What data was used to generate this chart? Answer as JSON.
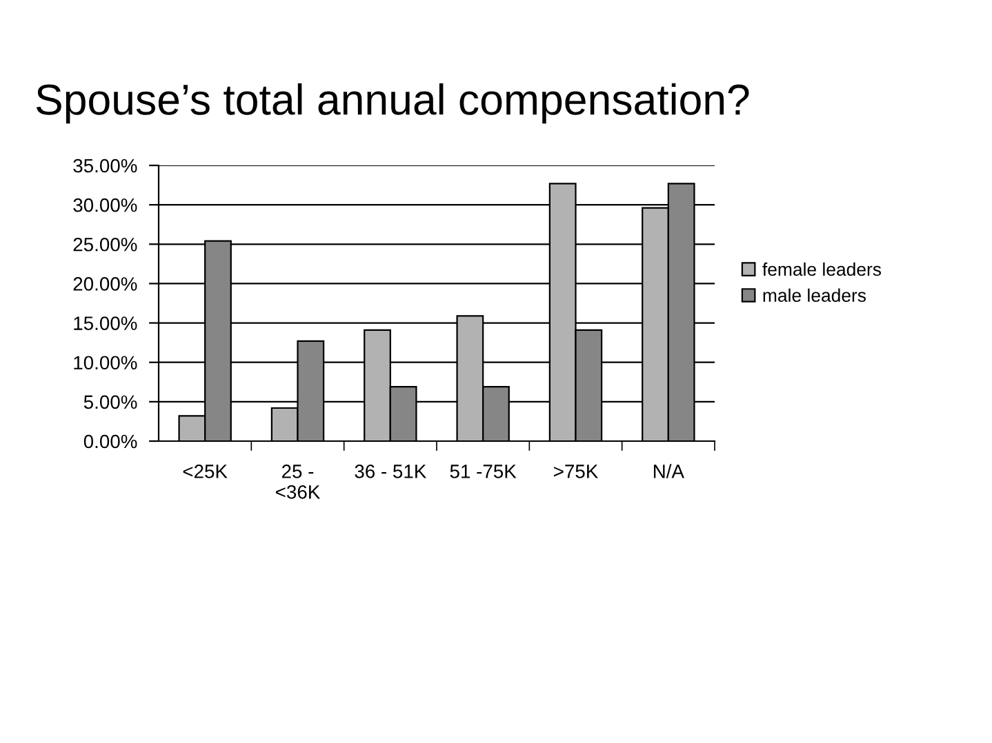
{
  "chart_data": {
    "type": "bar",
    "title": "Spouse’s total annual compensation?",
    "categories": [
      "<25K",
      "25 -\n<36K",
      "36 - 51K",
      "51 -75K",
      ">75K",
      "N/A"
    ],
    "series": [
      {
        "name": "female leaders",
        "color": "#b2b2b2",
        "values": [
          3.2,
          4.2,
          14.1,
          15.9,
          32.7,
          29.6
        ]
      },
      {
        "name": "male leaders",
        "color": "#868686",
        "values": [
          25.4,
          12.7,
          6.9,
          6.9,
          14.1,
          32.7
        ]
      }
    ],
    "ylim": [
      0,
      35
    ],
    "yticks": [
      {
        "value": 0,
        "label": "0.00%"
      },
      {
        "value": 5,
        "label": "5.00%"
      },
      {
        "value": 10,
        "label": "10.00%"
      },
      {
        "value": 15,
        "label": "15.00%"
      },
      {
        "value": 20,
        "label": "20.00%"
      },
      {
        "value": 25,
        "label": "25.00%"
      },
      {
        "value": 30,
        "label": "30.00%"
      },
      {
        "value": 35,
        "label": "35.00%"
      }
    ],
    "grid": "y",
    "legend": "right"
  }
}
